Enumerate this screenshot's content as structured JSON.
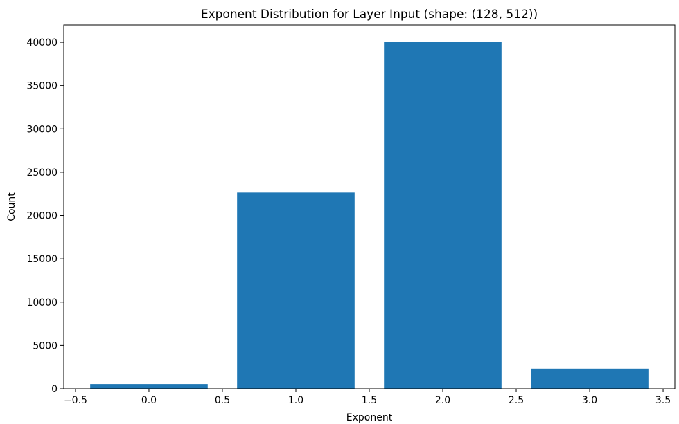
{
  "chart_data": {
    "type": "bar",
    "title": "Exponent Distribution for Layer Input (shape: (128, 512))",
    "xlabel": "Exponent",
    "ylabel": "Count",
    "bars": [
      {
        "x": 0,
        "value": 550
      },
      {
        "x": 1,
        "value": 22650
      },
      {
        "x": 2,
        "value": 40010
      },
      {
        "x": 3,
        "value": 2330
      }
    ],
    "bar_width": 0.8,
    "bar_color": "#1f77b4",
    "xlim": [
      -0.58,
      3.58
    ],
    "ylim": [
      0,
      42000
    ],
    "xticks": [
      -0.5,
      0.0,
      0.5,
      1.0,
      1.5,
      2.0,
      2.5,
      3.0,
      3.5
    ],
    "xtick_labels": [
      "−0.5",
      "0.0",
      "0.5",
      "1.0",
      "1.5",
      "2.0",
      "2.5",
      "3.0",
      "3.5"
    ],
    "yticks": [
      0,
      5000,
      10000,
      15000,
      20000,
      25000,
      30000,
      35000,
      40000
    ],
    "ytick_labels": [
      "0",
      "5000",
      "10000",
      "15000",
      "20000",
      "25000",
      "30000",
      "35000",
      "40000"
    ],
    "grid": false,
    "legend": "none"
  }
}
